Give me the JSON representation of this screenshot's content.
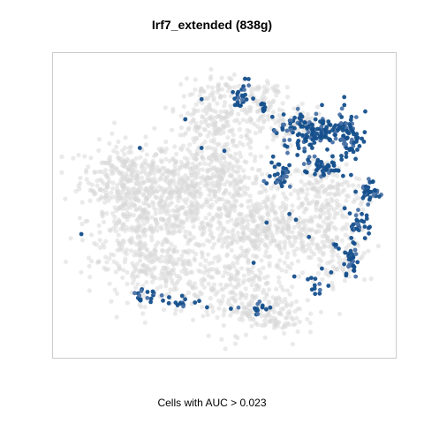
{
  "chart_data": {
    "type": "scatter",
    "title": "Irf7_extended (838g)",
    "caption": "Cells with AUC > 0.023",
    "background_color": "#d9d9d9",
    "highlight_color": "#144f8c",
    "highlight_color_light": "#4a72a6",
    "axes_visible": false,
    "xlim": [
      0,
      100
    ],
    "ylim": [
      0,
      100
    ],
    "series": [
      {
        "key": "background",
        "color": "#d9d9d9",
        "regions": [
          {
            "cx": 20,
            "cy": 60,
            "rx": 12,
            "ry": 10,
            "n": 260
          },
          {
            "cx": 25,
            "cy": 45,
            "rx": 14,
            "ry": 12,
            "n": 300
          },
          {
            "cx": 38,
            "cy": 55,
            "rx": 12,
            "ry": 14,
            "n": 260
          },
          {
            "cx": 30,
            "cy": 28,
            "rx": 16,
            "ry": 10,
            "n": 240
          },
          {
            "cx": 50,
            "cy": 78,
            "rx": 15,
            "ry": 8,
            "n": 200
          },
          {
            "cx": 48,
            "cy": 62,
            "rx": 10,
            "ry": 10,
            "n": 160
          },
          {
            "cx": 55,
            "cy": 45,
            "rx": 14,
            "ry": 14,
            "n": 260
          },
          {
            "cx": 68,
            "cy": 40,
            "rx": 16,
            "ry": 12,
            "n": 240
          },
          {
            "cx": 80,
            "cy": 55,
            "rx": 10,
            "ry": 10,
            "n": 160
          },
          {
            "cx": 52,
            "cy": 20,
            "rx": 14,
            "ry": 12,
            "n": 200
          },
          {
            "cx": 65,
            "cy": 12,
            "rx": 8,
            "ry": 6,
            "n": 100
          },
          {
            "cx": 85,
            "cy": 38,
            "rx": 8,
            "ry": 14,
            "n": 120
          },
          {
            "cx": 48,
            "cy": 90,
            "rx": 8,
            "ry": 5,
            "n": 60
          },
          {
            "cx": 62,
            "cy": 88,
            "rx": 5,
            "ry": 6,
            "n": 50
          },
          {
            "cx": 75,
            "cy": 78,
            "rx": 8,
            "ry": 6,
            "n": 80
          }
        ]
      },
      {
        "key": "highlighted",
        "color": "#144f8c",
        "regions": [
          {
            "cx": 76,
            "cy": 76,
            "rx": 9,
            "ry": 6,
            "n": 130
          },
          {
            "cx": 88,
            "cy": 75,
            "rx": 5,
            "ry": 7,
            "n": 70
          },
          {
            "cx": 80,
            "cy": 64,
            "rx": 6,
            "ry": 3,
            "n": 50
          },
          {
            "cx": 68,
            "cy": 60,
            "rx": 4,
            "ry": 3,
            "n": 30
          },
          {
            "cx": 95,
            "cy": 55,
            "rx": 3,
            "ry": 3,
            "n": 30
          },
          {
            "cx": 91,
            "cy": 44,
            "rx": 3,
            "ry": 6,
            "n": 30
          },
          {
            "cx": 89,
            "cy": 30,
            "rx": 2,
            "ry": 7,
            "n": 30
          },
          {
            "cx": 55,
            "cy": 88,
            "rx": 3,
            "ry": 4,
            "n": 25
          },
          {
            "cx": 62,
            "cy": 84,
            "rx": 1,
            "ry": 2,
            "n": 8
          },
          {
            "cx": 25,
            "cy": 18,
            "rx": 3,
            "ry": 3,
            "n": 15
          },
          {
            "cx": 36,
            "cy": 16,
            "rx": 8,
            "ry": 2,
            "n": 15
          },
          {
            "cx": 61,
            "cy": 14,
            "rx": 4,
            "ry": 2,
            "n": 12
          },
          {
            "cx": 76,
            "cy": 22,
            "rx": 5,
            "ry": 4,
            "n": 12
          },
          {
            "cx": 84,
            "cy": 36,
            "rx": 2,
            "ry": 2,
            "n": 6
          }
        ],
        "points": [
          [
            6,
            40
          ],
          [
            24,
            70
          ],
          [
            38,
            80
          ],
          [
            43,
            70
          ],
          [
            50,
            69
          ],
          [
            43,
            87
          ],
          [
            65,
            67
          ],
          [
            70,
            64
          ],
          [
            59,
            30
          ],
          [
            52,
            14
          ],
          [
            70,
            47
          ],
          [
            63,
            44
          ],
          [
            60,
            14
          ],
          [
            72,
            45
          ],
          [
            76,
            39
          ],
          [
            82,
            22
          ],
          [
            80,
            28
          ],
          [
            87,
            49
          ],
          [
            33,
            18
          ],
          [
            28,
            20
          ]
        ]
      }
    ]
  }
}
